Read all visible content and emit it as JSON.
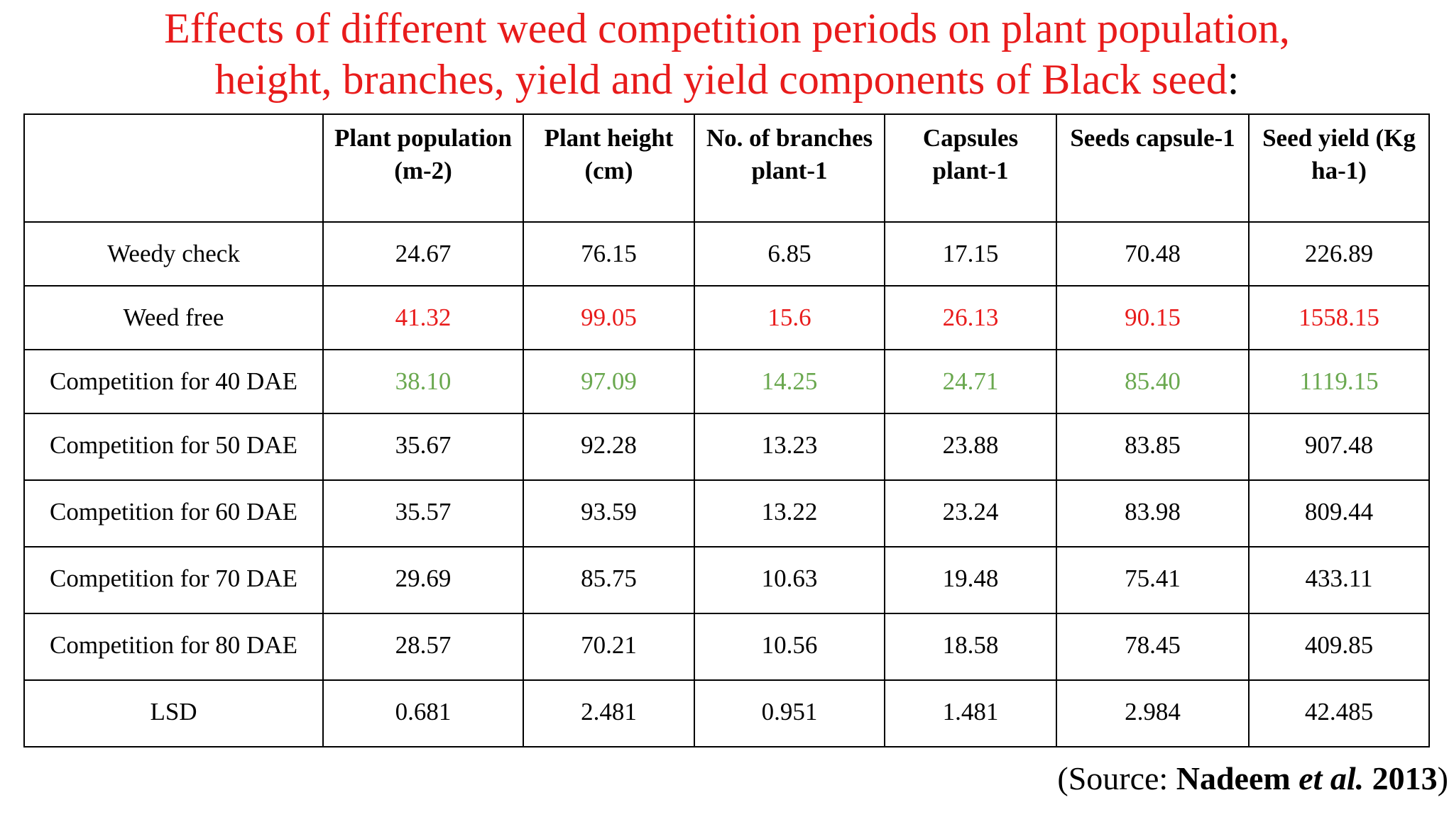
{
  "title": {
    "line1": "Effects of different weed competition periods on plant population,",
    "line2_main": "height, branches, yield and yield components of Black seed",
    "line2_colon": ":",
    "color": "#e81b1b"
  },
  "table": {
    "headers": [
      "",
      "Plant population (m-2)",
      "Plant height (cm)",
      "No. of branches plant-1",
      "Capsules plant-1",
      "Seeds capsule-1",
      "Seed yield (Kg ha-1)"
    ],
    "rows": [
      {
        "label": "Weedy check",
        "values": [
          "24.67",
          "76.15",
          "6.85",
          "17.15",
          "70.48",
          "226.89"
        ],
        "color": "#000000"
      },
      {
        "label": "Weed free",
        "values": [
          "41.32",
          "99.05",
          "15.6",
          "26.13",
          "90.15",
          "1558.15"
        ],
        "color": "#e81b1b"
      },
      {
        "label": "Competition for 40 DAE",
        "values": [
          "38.10",
          "97.09",
          "14.25",
          "24.71",
          "85.40",
          "1119.15"
        ],
        "color": "#6aa84f"
      },
      {
        "label": "Competition for 50 DAE",
        "values": [
          "35.67",
          "92.28",
          "13.23",
          "23.88",
          "83.85",
          "907.48"
        ],
        "color": "#000000"
      },
      {
        "label": "Competition for 60 DAE",
        "values": [
          "35.57",
          "93.59",
          "13.22",
          "23.24",
          "83.98",
          "809.44"
        ],
        "color": "#000000"
      },
      {
        "label": "Competition for 70 DAE",
        "values": [
          "29.69",
          "85.75",
          "10.63",
          "19.48",
          "75.41",
          "433.11"
        ],
        "color": "#000000"
      },
      {
        "label": "Competition for 80 DAE",
        "values": [
          "28.57",
          "70.21",
          "10.56",
          "18.58",
          "78.45",
          "409.85"
        ],
        "color": "#000000"
      },
      {
        "label": "LSD",
        "values": [
          "0.681",
          "2.481",
          "0.951",
          "1.481",
          "2.984",
          "42.485"
        ],
        "color": "#000000"
      }
    ]
  },
  "source": {
    "prefix": "(Source: ",
    "authors": "Nadeem ",
    "etal": "et al.",
    "year": " 2013",
    "suffix": ")"
  }
}
